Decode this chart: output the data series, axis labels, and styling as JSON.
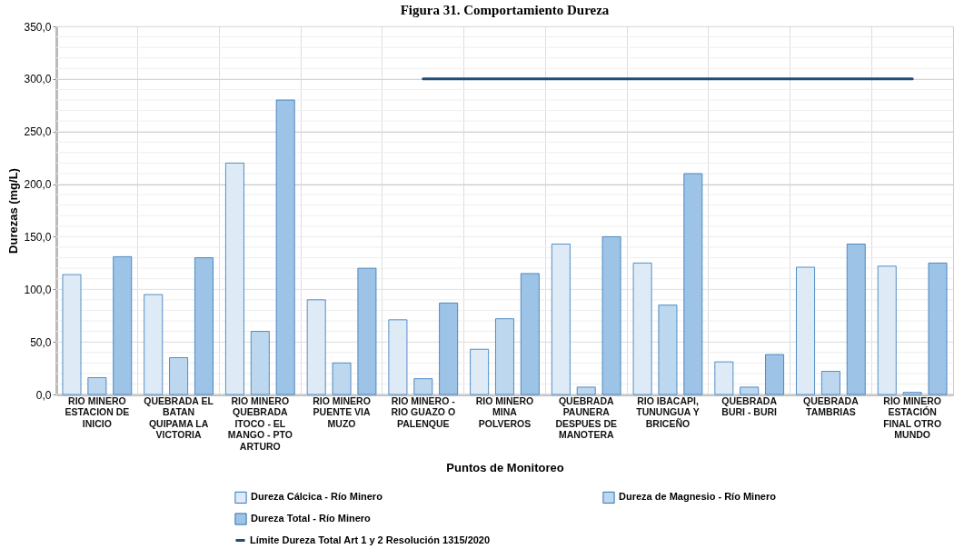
{
  "chart_data": {
    "type": "bar",
    "title": "Figura 31. Comportamiento Dureza",
    "xlabel": "Puntos de Monitoreo",
    "ylabel": "Durezas (mg/L)",
    "categories": [
      "RIO MINERO ESTACION DE INICIO",
      "QUEBRADA EL BATAN QUIPAMA LA VICTORIA",
      "RIO MINERO QUEBRADA ITOCO - EL MANGO - PTO ARTURO",
      "RIO MINERO PUENTE VIA MUZO",
      "RIO MINERO - RIO GUAZO O PALENQUE",
      "RIO MINERO MINA POLVEROS",
      "QUEBRADA PAUNERA DESPUES DE MANOTERA",
      "RIO IBACAPI, TUNUNGUA Y BRICEÑO",
      "QUEBRADA BURI - BURI",
      "QUEBRADA TAMBRIAS",
      "RÍO MINERO ESTACIÓN FINAL OTRO MUNDO"
    ],
    "series": [
      {
        "name": "Dureza Cálcica - Río Minero",
        "color": "#deebf7",
        "values": [
          114,
          95,
          220,
          90,
          71,
          43,
          143,
          125,
          31,
          121,
          122
        ]
      },
      {
        "name": "Dureza de Magnesio - Río Minero",
        "color": "#bdd7ee",
        "values": [
          16,
          35,
          60,
          30,
          15,
          72,
          7,
          85,
          7,
          22,
          2
        ]
      },
      {
        "name": "Dureza Total - Río Minero",
        "color": "#9dc3e6",
        "values": [
          131,
          130,
          280,
          120,
          87,
          115,
          150,
          210,
          38,
          143,
          125
        ]
      },
      {
        "name": "Límite Dureza Total Art 1 y 2 Resolución 1315/2020",
        "type": "line",
        "color": "#1f4e79",
        "values": [
          null,
          null,
          null,
          null,
          300,
          300,
          300,
          300,
          300,
          300,
          300
        ]
      }
    ],
    "ylim": [
      0,
      350
    ],
    "yticks": [
      {
        "value": 0,
        "label": "0,0"
      },
      {
        "value": 50,
        "label": "50,0"
      },
      {
        "value": 100,
        "label": "100,0"
      },
      {
        "value": 150,
        "label": "150,0"
      },
      {
        "value": 200,
        "label": "200,0"
      },
      {
        "value": 250,
        "label": "250,0"
      },
      {
        "value": 300,
        "label": "300,0"
      },
      {
        "value": 350,
        "label": "350,0"
      }
    ],
    "grid": true,
    "legend": "bottom"
  }
}
